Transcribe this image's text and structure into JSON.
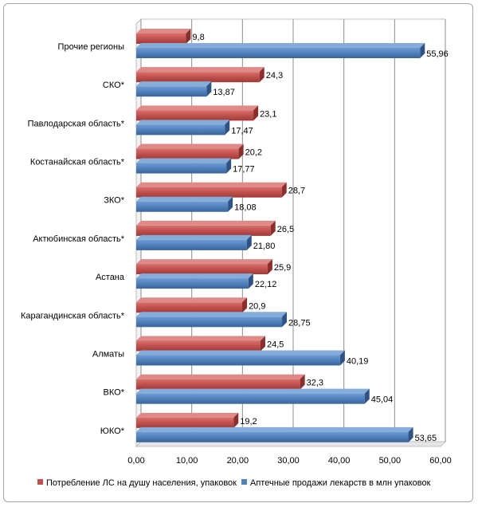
{
  "chart_data": {
    "type": "bar",
    "orientation": "horizontal",
    "style": "3d",
    "categories": [
      "Прочие регионы",
      "СКО*",
      "Павлодарская область*",
      "Костанайская область*",
      "ЗКО*",
      "Актюбинская область*",
      "Астана",
      "Карагандинская область*",
      "Алматы",
      "ВКО*",
      "ЮКО*"
    ],
    "series": [
      {
        "name": "Потребление ЛС на душу населения, упаковок",
        "color": "#c0504d",
        "values": [
          9.8,
          24.3,
          23.1,
          20.2,
          28.7,
          26.5,
          25.9,
          20.9,
          24.5,
          32.3,
          19.2
        ],
        "labels": [
          "9,8",
          "24,3",
          "23,1",
          "20,2",
          "28,7",
          "26,5",
          "25,9",
          "20,9",
          "24,5",
          "32,3",
          "19,2"
        ]
      },
      {
        "name": "Аптечные продажи лекарств в млн упаковок",
        "color": "#4f81bd",
        "values": [
          55.96,
          13.87,
          17.47,
          17.77,
          18.08,
          21.8,
          22.12,
          28.75,
          40.19,
          45.04,
          53.65
        ],
        "labels": [
          "55,96",
          "13,87",
          "17,47",
          "17,77",
          "18,08",
          "21,80",
          "22,12",
          "28,75",
          "40,19",
          "45,04",
          "53,65"
        ]
      }
    ],
    "xlim": [
      0,
      60
    ],
    "ticks": [
      0,
      10,
      20,
      30,
      40,
      50,
      60
    ],
    "tick_labels": [
      "0,00",
      "10,00",
      "20,00",
      "30,00",
      "40,00",
      "50,00",
      "60,00"
    ],
    "grid": true,
    "legend_position": "bottom",
    "title": "",
    "xlabel": "",
    "ylabel": ""
  }
}
